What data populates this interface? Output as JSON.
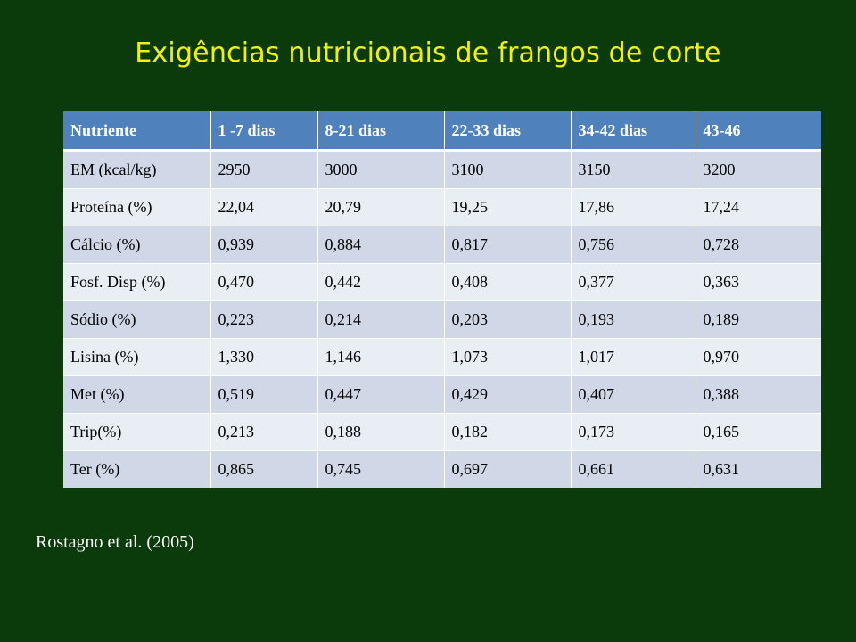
{
  "title": "Exigências nutricionais de frangos de corte",
  "table": {
    "headers": [
      "Nutriente",
      "1 -7 dias",
      "8-21 dias",
      "22-33 dias",
      "34-42 dias",
      "43-46"
    ],
    "rows": [
      [
        "EM (kcal/kg)",
        "2950",
        "3000",
        "3100",
        "3150",
        "3200"
      ],
      [
        "Proteína (%)",
        "22,04",
        "20,79",
        "19,25",
        "17,86",
        "17,24"
      ],
      [
        "Cálcio (%)",
        "0,939",
        "0,884",
        "0,817",
        "0,756",
        "0,728"
      ],
      [
        "Fosf. Disp (%)",
        "0,470",
        "0,442",
        "0,408",
        "0,377",
        "0,363"
      ],
      [
        "Sódio (%)",
        "0,223",
        "0,214",
        "0,203",
        "0,193",
        "0,189"
      ],
      [
        "Lisina (%)",
        "1,330",
        "1,146",
        "1,073",
        "1,017",
        "0,970"
      ],
      [
        "Met (%)",
        "0,519",
        "0,447",
        "0,429",
        "0,407",
        "0,388"
      ],
      [
        "Trip(%)",
        "0,213",
        "0,188",
        "0,182",
        "0,173",
        "0,165"
      ],
      [
        "Ter (%)",
        "0,865",
        "0,745",
        "0,697",
        "0,661",
        "0,631"
      ]
    ]
  },
  "source": "Rostagno et al. (2005)",
  "colors": {
    "background": "#0b3a0b",
    "title": "#f2f200",
    "header": "#4f81bd",
    "row_dark": "#d0d8e8",
    "row_light": "#e9edf4"
  }
}
